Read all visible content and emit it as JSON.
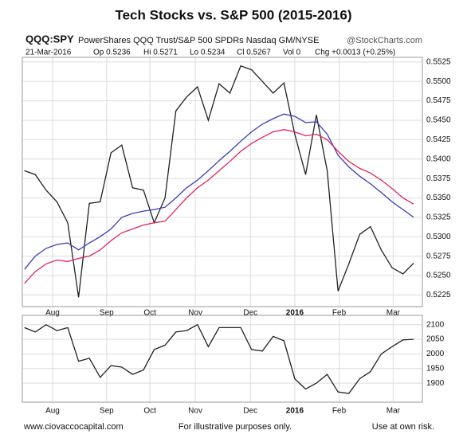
{
  "title": "Tech Stocks vs. S&P 500  (2015-2016)",
  "header": {
    "symbol": "QQQ:SPY",
    "description": "PowerShares QQQ Trust/S&P 500 SPDRs Nasdaq GM/NYSE",
    "source": "@StockCharts.com",
    "date": "21-Mar-2016",
    "open": "Op 0.5236",
    "high": "Hi 0.5271",
    "low": "Lo 0.5234",
    "close": "Cl 0.5267",
    "volume": "Vol 0",
    "change": "Chg +0.0013 (+0.25%)"
  },
  "footer": {
    "left": "www.ciovaccocapital.com",
    "center": "For illustrative purposes only.",
    "right": "Use at own risk."
  },
  "chart_data": [
    {
      "type": "line",
      "x": [
        0,
        1,
        2,
        3,
        4,
        5,
        6,
        7,
        8,
        9,
        10,
        11,
        12,
        13,
        14,
        15,
        16,
        17,
        18,
        19,
        20,
        21,
        22,
        23,
        24,
        25,
        26,
        27,
        28,
        29,
        30,
        31,
        32,
        33,
        34,
        35,
        36
      ],
      "xlim": [
        -0.2,
        36.8
      ],
      "xticks": [
        {
          "value": 2.6,
          "label": "Aug"
        },
        {
          "value": 7.6,
          "label": "Sep"
        },
        {
          "value": 11.6,
          "label": "Oct"
        },
        {
          "value": 15.8,
          "label": "Nov"
        },
        {
          "value": 20.9,
          "label": "Dec"
        },
        {
          "value": 25.0,
          "label": "2016"
        },
        {
          "value": 29.1,
          "label": "Feb"
        },
        {
          "value": 34.1,
          "label": "Mar"
        }
      ],
      "ylim": [
        0.521,
        0.5531
      ],
      "yticks": [
        0.5225,
        {
          "value": 0.525,
          "label": "0.5250"
        },
        0.5275,
        {
          "value": 0.53,
          "label": "0.5300"
        },
        0.5325,
        {
          "value": 0.535,
          "label": "0.5350"
        },
        0.5375,
        {
          "value": 0.54,
          "label": "0.5400"
        },
        0.5425,
        {
          "value": 0.545,
          "label": "0.5450"
        },
        0.5475,
        {
          "value": 0.55,
          "label": "0.5500"
        },
        0.5525
      ],
      "grid": true,
      "series": [
        {
          "color": "#222222",
          "values": [
            0.5385,
            0.538,
            0.536,
            0.5345,
            0.5318,
            0.5222,
            0.5343,
            0.5345,
            0.5408,
            0.5418,
            0.5363,
            0.536,
            0.5318,
            0.535,
            0.5462,
            0.548,
            0.5493,
            0.545,
            0.5497,
            0.5485,
            0.552,
            0.5515,
            0.55,
            0.5485,
            0.5498,
            0.5432,
            0.538,
            0.5457,
            0.5385,
            0.523,
            0.5265,
            0.5303,
            0.5313,
            0.5283,
            0.526,
            0.5252,
            0.5266
          ]
        },
        {
          "color": "#3c3cb4",
          "values": [
            0.5258,
            0.5275,
            0.5285,
            0.529,
            0.5292,
            0.5283,
            0.5292,
            0.53,
            0.531,
            0.5325,
            0.533,
            0.5333,
            0.5335,
            0.5338,
            0.535,
            0.5363,
            0.5373,
            0.5385,
            0.5398,
            0.541,
            0.5423,
            0.5435,
            0.5445,
            0.5452,
            0.5458,
            0.5455,
            0.5447,
            0.5448,
            0.5432,
            0.5405,
            0.539,
            0.5378,
            0.5368,
            0.5357,
            0.5345,
            0.5335,
            0.5325
          ]
        },
        {
          "color": "#e0245e",
          "values": [
            0.524,
            0.5255,
            0.5265,
            0.527,
            0.5268,
            0.5272,
            0.5275,
            0.5283,
            0.5295,
            0.5305,
            0.531,
            0.5315,
            0.5318,
            0.532,
            0.5335,
            0.535,
            0.5363,
            0.5373,
            0.5385,
            0.5397,
            0.541,
            0.542,
            0.5428,
            0.5435,
            0.5438,
            0.5435,
            0.543,
            0.5432,
            0.5425,
            0.541,
            0.5397,
            0.5388,
            0.5382,
            0.5373,
            0.5362,
            0.535,
            0.5342
          ]
        }
      ]
    },
    {
      "type": "line",
      "x": [
        0,
        1,
        2,
        3,
        4,
        5,
        6,
        7,
        8,
        9,
        10,
        11,
        12,
        13,
        14,
        15,
        16,
        17,
        18,
        19,
        20,
        21,
        22,
        23,
        24,
        25,
        26,
        27,
        28,
        29,
        30,
        31,
        32,
        33,
        34,
        35,
        36
      ],
      "xlim": [
        -0.2,
        36.8
      ],
      "xticks": [
        {
          "value": 2.6,
          "label": "Aug"
        },
        {
          "value": 7.6,
          "label": "Sep"
        },
        {
          "value": 11.6,
          "label": "Oct"
        },
        {
          "value": 15.8,
          "label": "Nov"
        },
        {
          "value": 20.9,
          "label": "Dec"
        },
        {
          "value": 25.0,
          "label": "2016"
        },
        {
          "value": 29.1,
          "label": "Feb"
        },
        {
          "value": 34.1,
          "label": "Mar"
        }
      ],
      "ylim": [
        1835,
        2132
      ],
      "yticks": [
        1900,
        1950,
        2000,
        2050,
        2100
      ],
      "grid": true,
      "series": [
        {
          "color": "#222222",
          "values": [
            2090,
            2075,
            2100,
            2080,
            2090,
            1975,
            1985,
            1920,
            1960,
            1955,
            1930,
            1945,
            2015,
            2030,
            2075,
            2080,
            2100,
            2025,
            2090,
            2090,
            2090,
            2015,
            2010,
            2060,
            2045,
            1915,
            1880,
            1900,
            1930,
            1870,
            1865,
            1915,
            1940,
            2000,
            2025,
            2048,
            2050
          ]
        }
      ]
    }
  ]
}
